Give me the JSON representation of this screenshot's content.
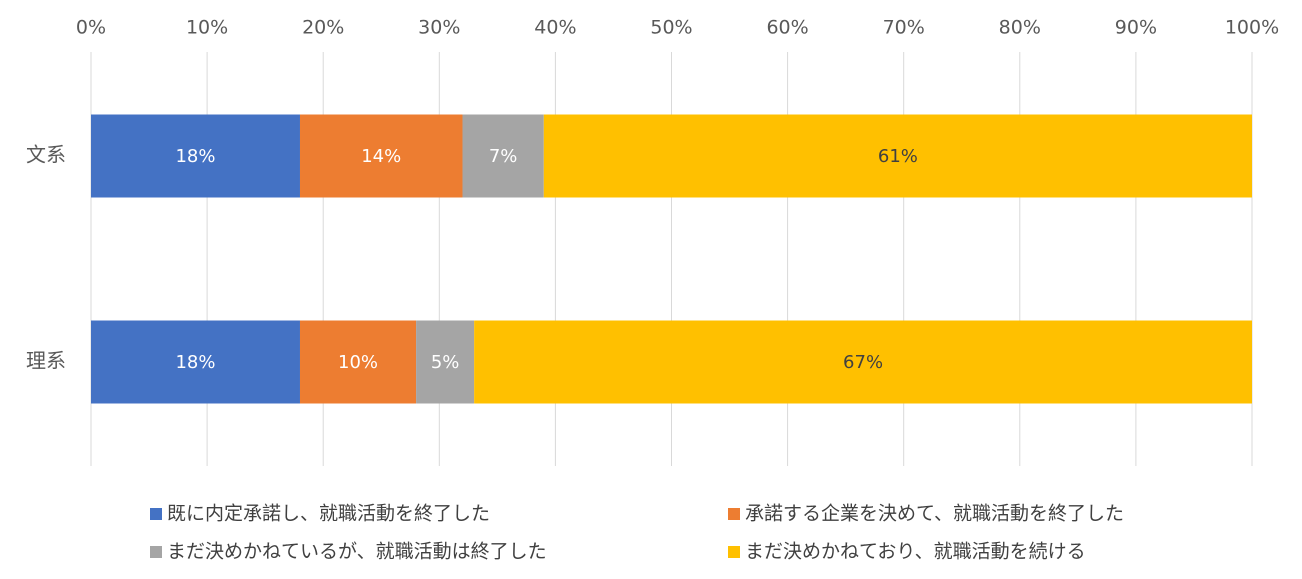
{
  "chart_data": {
    "type": "bar",
    "orientation": "horizontal",
    "stacked": "percent",
    "title": "",
    "xlabel": "",
    "ylabel": "",
    "xlim": [
      0,
      100
    ],
    "x_ticks": [
      "0%",
      "10%",
      "20%",
      "30%",
      "40%",
      "50%",
      "60%",
      "70%",
      "80%",
      "90%",
      "100%"
    ],
    "x_axis_position": "top",
    "grid": true,
    "legend_position": "bottom",
    "categories": [
      "文系",
      "理系"
    ],
    "series": [
      {
        "name": "既に内定承諾し、就職活動を終了した",
        "color": "#4472C4",
        "label_color": "#FFFFFF",
        "values": [
          18,
          18
        ],
        "labels": [
          "18%",
          "18%"
        ]
      },
      {
        "name": "承諾する企業を決めて、就職活動を終了した",
        "color": "#ED7D31",
        "label_color": "#FFFFFF",
        "values": [
          14,
          10
        ],
        "labels": [
          "14%",
          "10%"
        ]
      },
      {
        "name": "まだ決めかねているが、就職活動は終了した",
        "color": "#A5A5A5",
        "label_color": "#FFFFFF",
        "values": [
          7,
          5
        ],
        "labels": [
          "7%",
          "5%"
        ]
      },
      {
        "name": "まだ決めかねており、就職活動を続ける",
        "color": "#FFC000",
        "label_color": "#404040",
        "values": [
          61,
          67
        ],
        "labels": [
          "61%",
          "67%"
        ]
      }
    ]
  }
}
